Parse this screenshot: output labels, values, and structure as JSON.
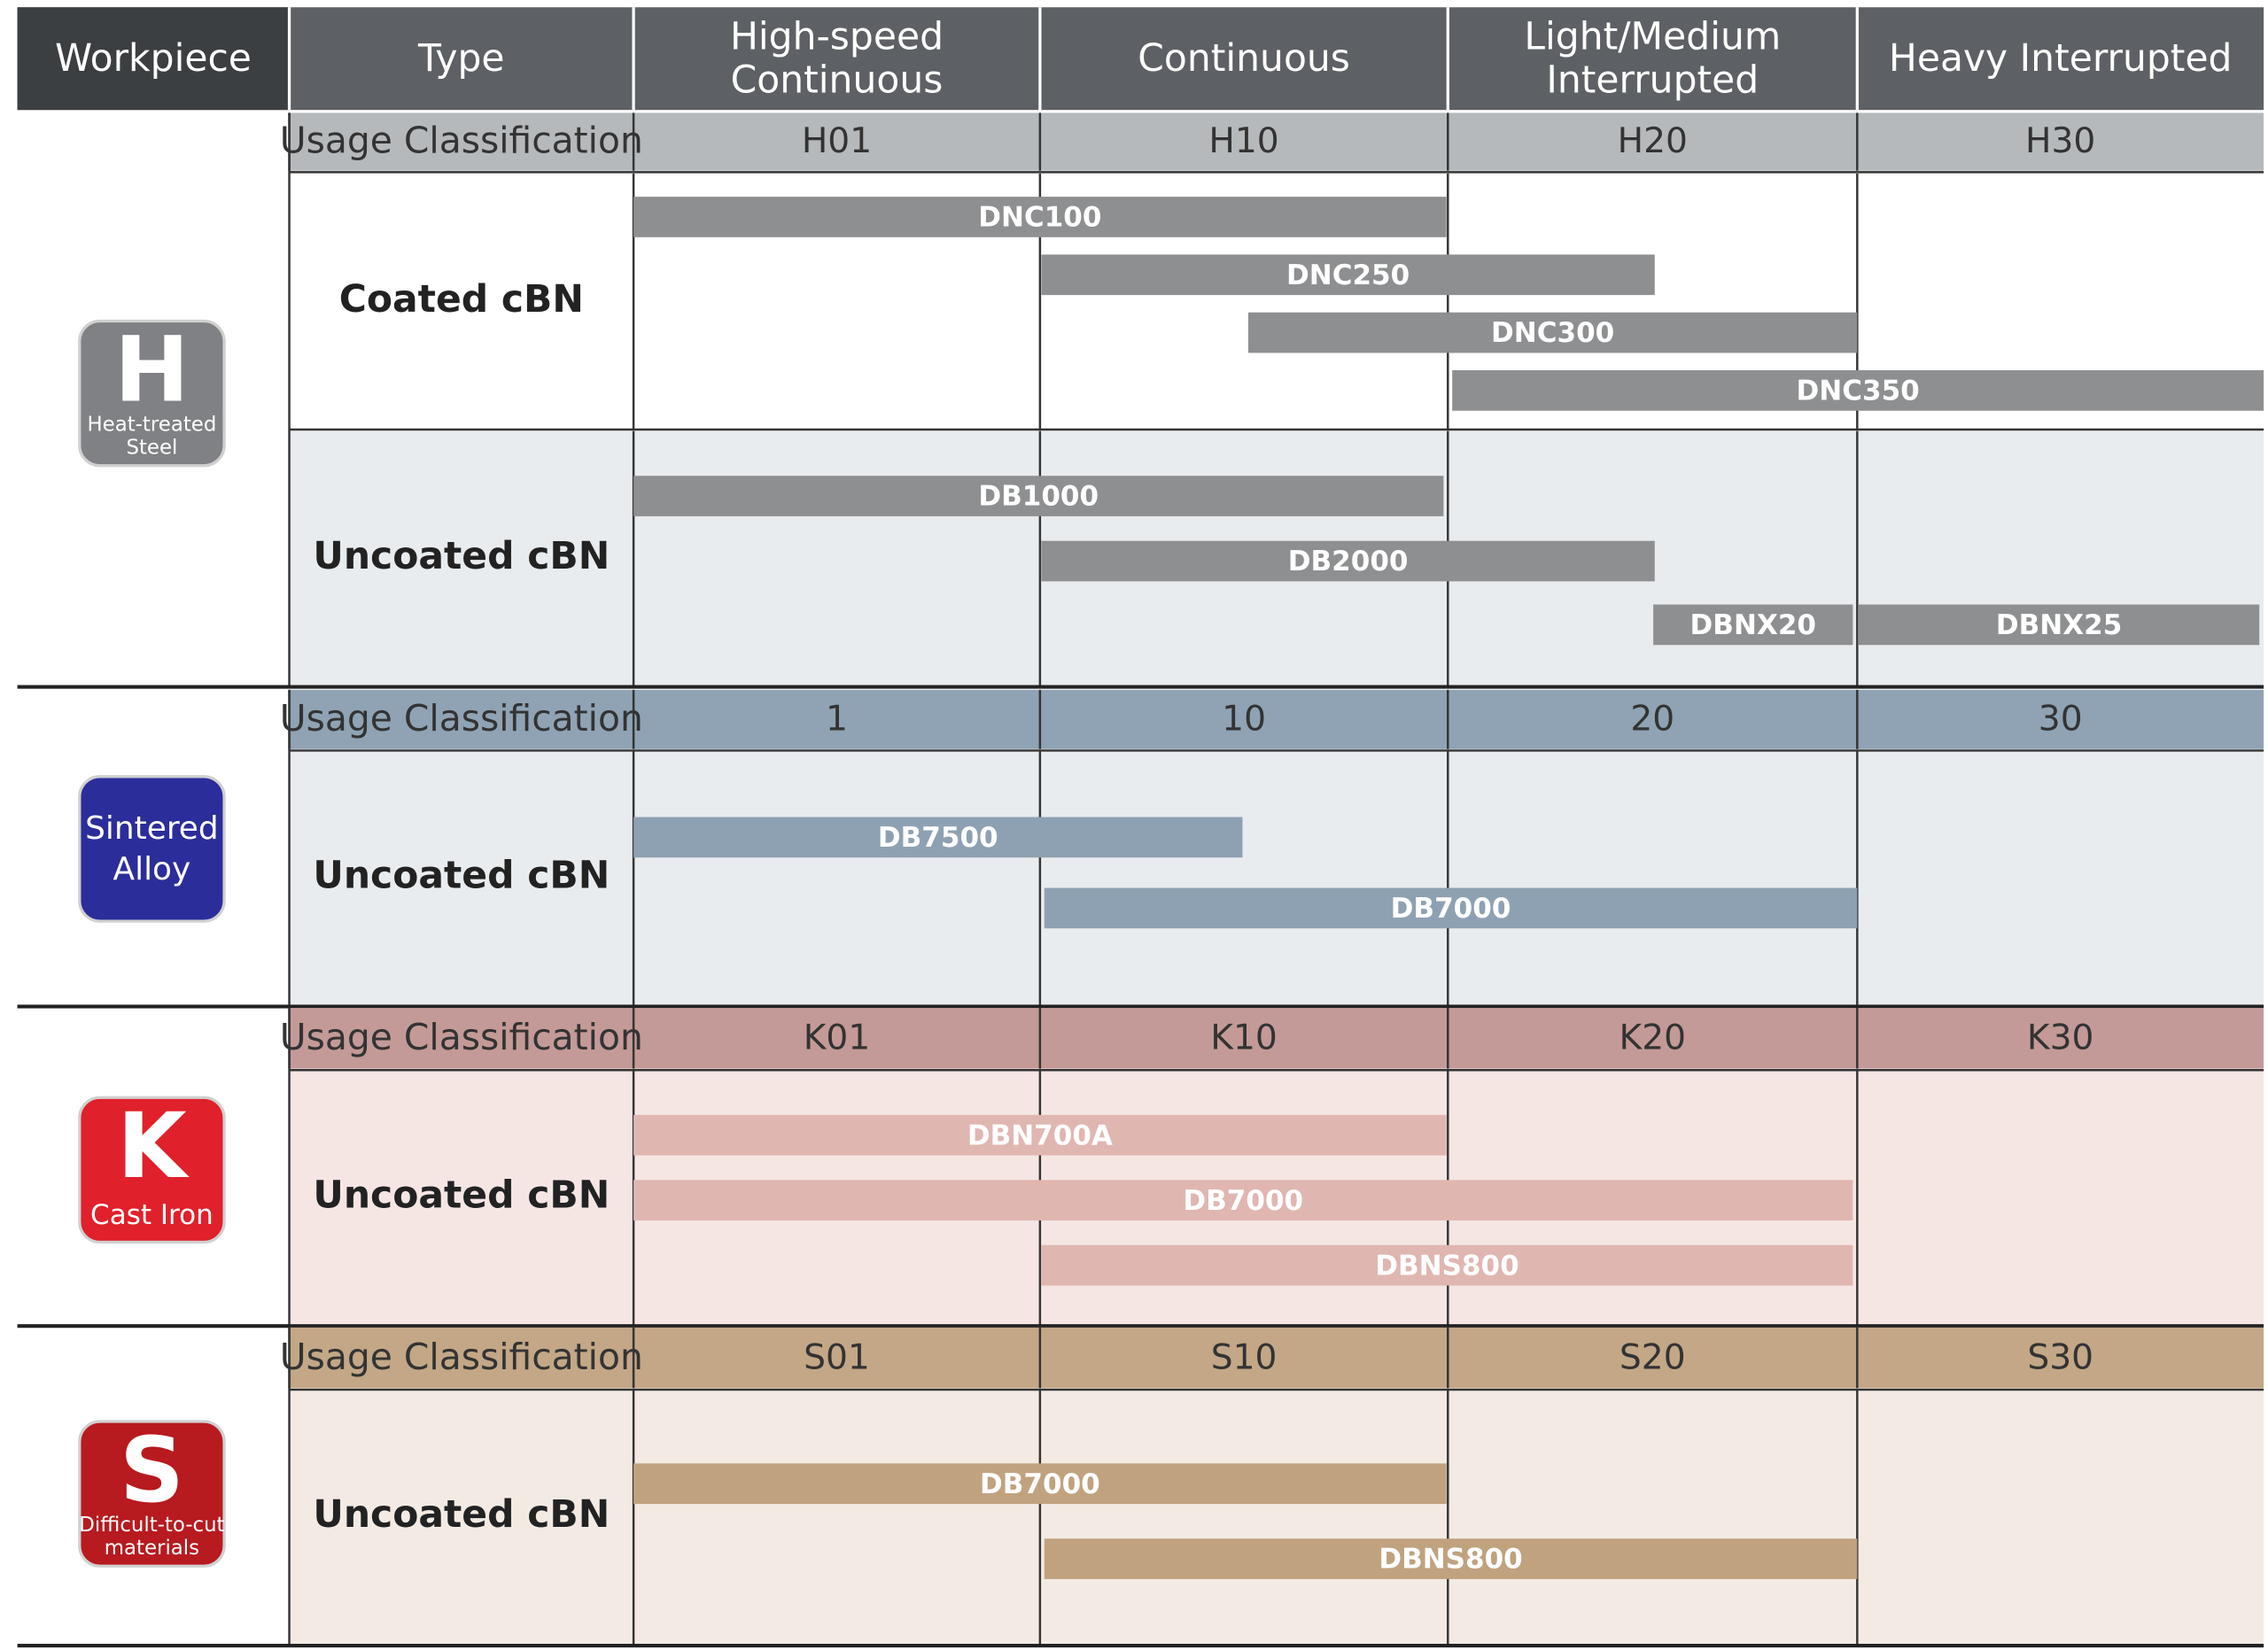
{
  "header": {
    "workpiece": "Workpiece",
    "type": "Type",
    "columns": [
      [
        "High-speed",
        "Continuous"
      ],
      [
        "Continuous"
      ],
      [
        "Light/Medium",
        "Interrupted"
      ],
      [
        "Heavy Interrupted"
      ]
    ]
  },
  "sections": [
    {
      "icon": {
        "letter": "H",
        "caption": [
          "Heat-treated",
          "Steel"
        ]
      },
      "usage_label": "Usage Classification",
      "grades": [
        "H01",
        "H10",
        "H20",
        "H30"
      ],
      "types": [
        {
          "type": "Coated cBN",
          "bars": [
            "DNC100",
            "DNC250",
            "DNC300",
            "DNC350"
          ]
        },
        {
          "type": "Uncoated cBN",
          "bars": [
            "DB1000",
            "DB2000",
            "DBNX20",
            "DBNX25"
          ]
        }
      ]
    },
    {
      "icon": {
        "caption": [
          "Sintered",
          "Alloy"
        ]
      },
      "usage_label": "Usage Classification",
      "grades": [
        "1",
        "10",
        "20",
        "30"
      ],
      "types": [
        {
          "type": "Uncoated cBN",
          "bars": [
            "DB7500",
            "DB7000"
          ]
        }
      ]
    },
    {
      "icon": {
        "letter": "K",
        "caption": [
          "Cast Iron"
        ]
      },
      "usage_label": "Usage Classification",
      "grades": [
        "K01",
        "K10",
        "K20",
        "K30"
      ],
      "types": [
        {
          "type": "Uncoated cBN",
          "bars": [
            "DBN700A",
            "DB7000",
            "DBNS800"
          ]
        }
      ]
    },
    {
      "icon": {
        "letter": "S",
        "caption": [
          "Difficult-to-cut",
          "materials"
        ]
      },
      "usage_label": "Usage Classification",
      "grades": [
        "S01",
        "S10",
        "S20",
        "S30"
      ],
      "types": [
        {
          "type": "Uncoated cBN",
          "bars": [
            "DB7000",
            "DBNS800"
          ]
        }
      ]
    }
  ]
}
